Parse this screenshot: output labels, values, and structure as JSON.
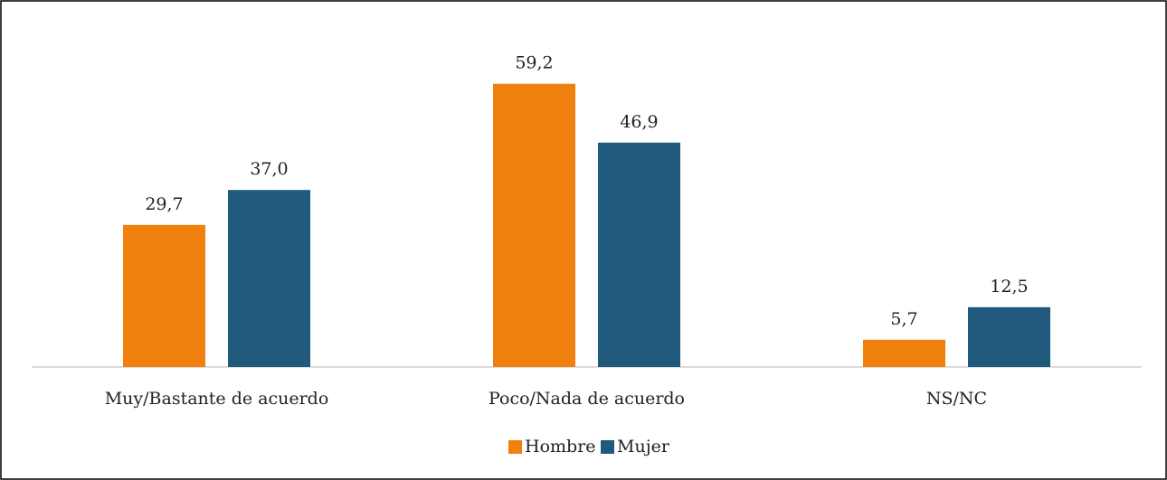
{
  "chart_data": {
    "type": "bar",
    "categories": [
      "Muy/Bastante de acuerdo",
      "Poco/Nada de acuerdo",
      "NS/NC"
    ],
    "series": [
      {
        "name": "Hombre",
        "color": "#f0810f",
        "values": [
          29.7,
          59.2,
          5.7
        ],
        "value_labels": [
          "29,7",
          "59,2",
          "5,7"
        ]
      },
      {
        "name": "Mujer",
        "color": "#1f5a7d",
        "values": [
          37.0,
          46.9,
          12.5
        ],
        "value_labels": [
          "37,0",
          "46,9",
          "12,5"
        ]
      }
    ],
    "ylim": [
      0,
      65
    ],
    "legend": "bottom"
  }
}
